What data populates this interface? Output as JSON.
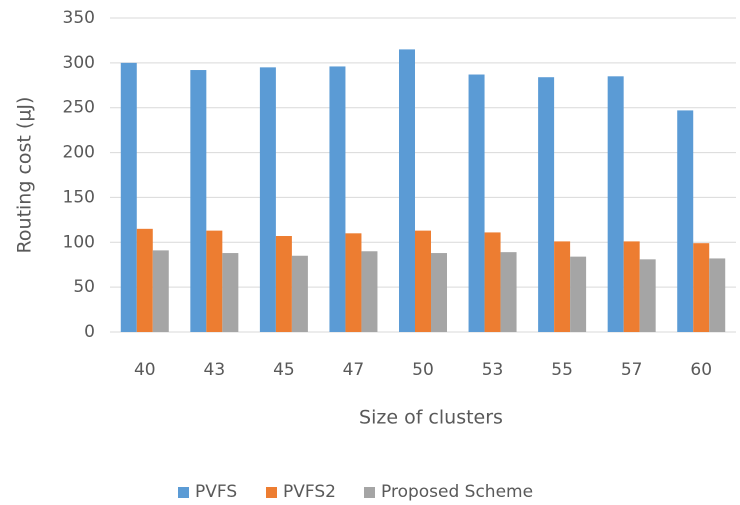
{
  "chart_data": {
    "type": "bar",
    "x_label": "Size of clusters",
    "y_label": "Routing cost (µJ)",
    "categories": [
      "40",
      "43",
      "45",
      "47",
      "50",
      "53",
      "55",
      "57",
      "60"
    ],
    "series": [
      {
        "name": "PVFS",
        "color": "#5b9bd5",
        "values": [
          300,
          292,
          295,
          296,
          315,
          287,
          284,
          285,
          247
        ]
      },
      {
        "name": "PVFS2",
        "color": "#ed7d31",
        "values": [
          115,
          113,
          107,
          110,
          113,
          111,
          101,
          101,
          99
        ]
      },
      {
        "name": "Proposed Scheme",
        "color": "#a5a5a5",
        "values": [
          91,
          88,
          85,
          90,
          88,
          89,
          84,
          81,
          82
        ]
      }
    ],
    "ylim": [
      0,
      350
    ],
    "yticks": [
      0,
      50,
      100,
      150,
      200,
      250,
      300,
      350
    ],
    "grid": true,
    "legend": "bottom"
  }
}
